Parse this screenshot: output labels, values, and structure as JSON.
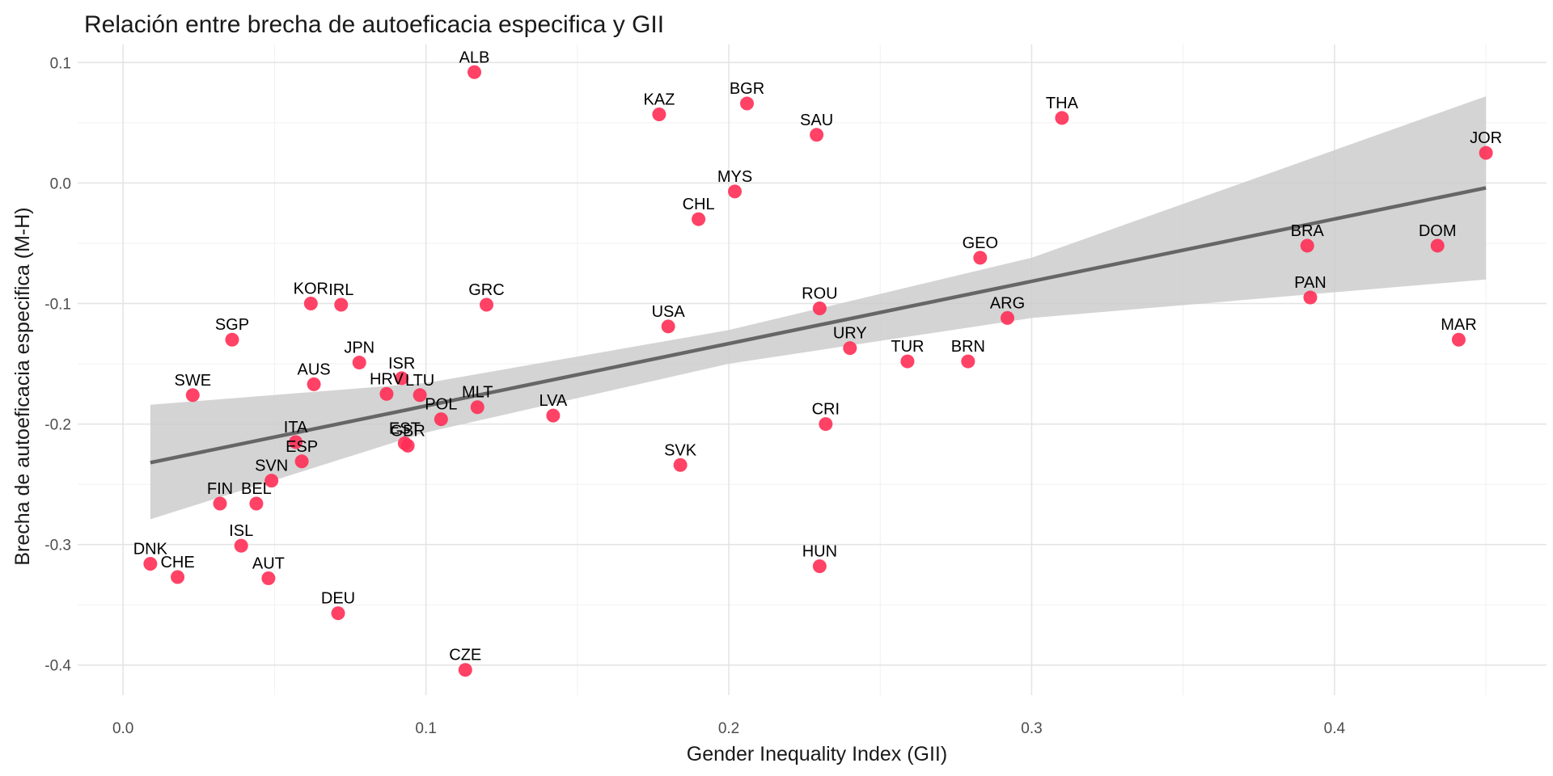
{
  "chart_data": {
    "type": "scatter",
    "title": "Relación entre brecha de autoeficacia especifica y GII",
    "xlabel": "Gender Inequality Index (GII)",
    "ylabel": "Brecha de autoeficacia especifica (M-H)",
    "xlim": [
      -0.015,
      0.47
    ],
    "ylim": [
      -0.425,
      0.115
    ],
    "x_ticks": [
      0.0,
      0.1,
      0.2,
      0.3,
      0.4
    ],
    "x_tick_labels": [
      "0.0",
      "0.1",
      "0.2",
      "0.3",
      "0.4"
    ],
    "y_ticks": [
      0.1,
      0.0,
      -0.1,
      -0.2,
      -0.3,
      -0.4
    ],
    "y_tick_labels": [
      "0.1",
      "0.0",
      "-0.1",
      "-0.2",
      "-0.3",
      "-0.4"
    ],
    "grid": true,
    "point_color": "#ff2d55",
    "fit_line_color": "#666666",
    "confidence_band_color": "#cccccc",
    "fit_line": {
      "x": [
        0.009,
        0.45
      ],
      "y": [
        -0.232,
        -0.004
      ]
    },
    "confidence_band": {
      "x": [
        0.009,
        0.1,
        0.2,
        0.3,
        0.45
      ],
      "upper": [
        -0.184,
        -0.166,
        -0.122,
        -0.062,
        0.072
      ],
      "lower": [
        -0.279,
        -0.207,
        -0.15,
        -0.112,
        -0.08
      ]
    },
    "points": [
      {
        "label": "ALB",
        "x": 0.116,
        "y": 0.092
      },
      {
        "label": "KAZ",
        "x": 0.177,
        "y": 0.057
      },
      {
        "label": "BGR",
        "x": 0.206,
        "y": 0.066
      },
      {
        "label": "SAU",
        "x": 0.229,
        "y": 0.04
      },
      {
        "label": "THA",
        "x": 0.31,
        "y": 0.054
      },
      {
        "label": "JOR",
        "x": 0.45,
        "y": 0.025
      },
      {
        "label": "MYS",
        "x": 0.202,
        "y": -0.007
      },
      {
        "label": "CHL",
        "x": 0.19,
        "y": -0.03
      },
      {
        "label": "GEO",
        "x": 0.283,
        "y": -0.062
      },
      {
        "label": "BRA",
        "x": 0.391,
        "y": -0.052
      },
      {
        "label": "DOM",
        "x": 0.434,
        "y": -0.052
      },
      {
        "label": "KOR",
        "x": 0.062,
        "y": -0.1
      },
      {
        "label": "IRL",
        "x": 0.072,
        "y": -0.101
      },
      {
        "label": "GRC",
        "x": 0.12,
        "y": -0.101
      },
      {
        "label": "PAN",
        "x": 0.392,
        "y": -0.095
      },
      {
        "label": "ROU",
        "x": 0.23,
        "y": -0.104
      },
      {
        "label": "ARG",
        "x": 0.292,
        "y": -0.112
      },
      {
        "label": "USA",
        "x": 0.18,
        "y": -0.119
      },
      {
        "label": "SGP",
        "x": 0.036,
        "y": -0.13
      },
      {
        "label": "MAR",
        "x": 0.441,
        "y": -0.13
      },
      {
        "label": "URY",
        "x": 0.24,
        "y": -0.137
      },
      {
        "label": "JPN",
        "x": 0.078,
        "y": -0.149
      },
      {
        "label": "TUR",
        "x": 0.259,
        "y": -0.148
      },
      {
        "label": "BRN",
        "x": 0.279,
        "y": -0.148
      },
      {
        "label": "ISR",
        "x": 0.092,
        "y": -0.162
      },
      {
        "label": "AUS",
        "x": 0.063,
        "y": -0.167
      },
      {
        "label": "SWE",
        "x": 0.023,
        "y": -0.176
      },
      {
        "label": "HRV",
        "x": 0.087,
        "y": -0.175
      },
      {
        "label": "LTU",
        "x": 0.098,
        "y": -0.176
      },
      {
        "label": "MLT",
        "x": 0.117,
        "y": -0.186
      },
      {
        "label": "POL",
        "x": 0.105,
        "y": -0.196
      },
      {
        "label": "LVA",
        "x": 0.142,
        "y": -0.193
      },
      {
        "label": "CRI",
        "x": 0.232,
        "y": -0.2
      },
      {
        "label": "ITA",
        "x": 0.057,
        "y": -0.215
      },
      {
        "label": "EST",
        "x": 0.093,
        "y": -0.216
      },
      {
        "label": "GBR",
        "x": 0.094,
        "y": -0.218
      },
      {
        "label": "ESP",
        "x": 0.059,
        "y": -0.231
      },
      {
        "label": "SVK",
        "x": 0.184,
        "y": -0.234
      },
      {
        "label": "SVN",
        "x": 0.049,
        "y": -0.247
      },
      {
        "label": "FIN",
        "x": 0.032,
        "y": -0.266
      },
      {
        "label": "BEL",
        "x": 0.044,
        "y": -0.266
      },
      {
        "label": "ISL",
        "x": 0.039,
        "y": -0.301
      },
      {
        "label": "DNK",
        "x": 0.009,
        "y": -0.316
      },
      {
        "label": "HUN",
        "x": 0.23,
        "y": -0.318
      },
      {
        "label": "CHE",
        "x": 0.018,
        "y": -0.327
      },
      {
        "label": "AUT",
        "x": 0.048,
        "y": -0.328
      },
      {
        "label": "DEU",
        "x": 0.071,
        "y": -0.357
      },
      {
        "label": "CZE",
        "x": 0.113,
        "y": -0.404
      }
    ]
  }
}
